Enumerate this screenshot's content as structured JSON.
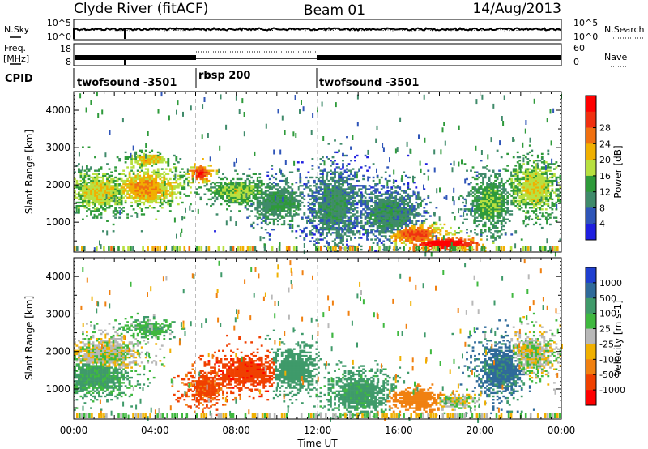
{
  "header": {
    "station": "Clyde River (fitACF)",
    "beam": "Beam 01",
    "date": "14/Aug/2013"
  },
  "strip": {
    "nsky_label": "N.Sky",
    "nsearch_label": "N.Search",
    "nsky_ticks": [
      "10^5",
      "10^0"
    ],
    "nsearch_ticks": [
      "10^5",
      "10^0"
    ],
    "freq_label_1": "Freq.",
    "freq_label_2": "[MHz]",
    "freq_ticks": [
      "18",
      "8"
    ],
    "nave_label": "Nave",
    "nave_ticks": [
      "60",
      "0"
    ],
    "cpid_label": "CPID",
    "cpid_segments": [
      {
        "label": "twofsound -3501",
        "start": 0,
        "end": 6
      },
      {
        "label": "rbsp 200",
        "start": 6,
        "end": 12
      },
      {
        "label": "twofsound -3501",
        "start": 12,
        "end": 24
      }
    ]
  },
  "chart_data": [
    {
      "type": "heatmap",
      "name": "power",
      "ylabel": "Slant Range [km]",
      "xlim": [
        0,
        24
      ],
      "ylim": [
        200,
        4500
      ],
      "yticks": [
        "1000",
        "2000",
        "3000",
        "4000"
      ],
      "colorbar_label": "Power [dB]",
      "colorbar_ticks": [
        "4",
        "8",
        "12",
        "16",
        "20",
        "24",
        "28"
      ],
      "colorbar_colors": [
        "#1f1fe0",
        "#2f55b8",
        "#3f8a6a",
        "#2e9a3a",
        "#b8e040",
        "#f0b000",
        "#f07010",
        "#f03010",
        "#ff0000"
      ],
      "blobs": [
        {
          "t": 1.2,
          "r": 1800,
          "sr": 500,
          "st": 1.4,
          "v": 14
        },
        {
          "t": 3.5,
          "r": 1900,
          "sr": 420,
          "st": 1.6,
          "v": 18
        },
        {
          "t": 3.6,
          "r": 2650,
          "sr": 160,
          "st": 0.9,
          "v": 16
        },
        {
          "t": 6.2,
          "r": 2300,
          "sr": 220,
          "st": 0.5,
          "v": 24
        },
        {
          "t": 8.0,
          "r": 1800,
          "sr": 320,
          "st": 1.4,
          "v": 12
        },
        {
          "t": 10.0,
          "r": 1500,
          "sr": 480,
          "st": 1.2,
          "v": 8
        },
        {
          "t": 12.8,
          "r": 1400,
          "sr": 900,
          "st": 1.2,
          "v": 6
        },
        {
          "t": 15.5,
          "r": 1200,
          "sr": 650,
          "st": 1.4,
          "v": 6
        },
        {
          "t": 16.8,
          "r": 650,
          "sr": 260,
          "st": 1.4,
          "v": 22
        },
        {
          "t": 18.2,
          "r": 400,
          "sr": 160,
          "st": 1.5,
          "v": 30
        },
        {
          "t": 20.4,
          "r": 1500,
          "sr": 650,
          "st": 0.9,
          "v": 10
        },
        {
          "t": 22.6,
          "r": 1900,
          "sr": 650,
          "st": 1.1,
          "v": 14
        }
      ]
    },
    {
      "type": "heatmap",
      "name": "velocity",
      "xlabel": "Time UT",
      "ylabel": "Slant Range [km]",
      "xlim": [
        0,
        24
      ],
      "ylim": [
        200,
        4500
      ],
      "xticks": [
        "00:00",
        "04:00",
        "08:00",
        "12:00",
        "16:00",
        "20:00",
        "00:00"
      ],
      "yticks": [
        "1000",
        "2000",
        "3000",
        "4000"
      ],
      "colorbar_label": "Velocity [m s-1]",
      "colorbar_ticks": [
        "1000",
        "500",
        "100",
        "25",
        "-25",
        "-100",
        "-500",
        "-1000"
      ],
      "colorbar_colors": [
        "#1f3fd0",
        "#2f6a9a",
        "#3f9a6a",
        "#3fb83f",
        "#b8b8b8",
        "#f0b000",
        "#f08010",
        "#f04000",
        "#ff0000"
      ],
      "blobs": [
        {
          "t": 1.5,
          "r": 1900,
          "sr": 420,
          "st": 1.6,
          "v": 0
        },
        {
          "t": 1.0,
          "r": 1300,
          "sr": 450,
          "st": 1.5,
          "v": 120
        },
        {
          "t": 3.6,
          "r": 2600,
          "sr": 200,
          "st": 1.0,
          "v": 80
        },
        {
          "t": 6.5,
          "r": 1000,
          "sr": 400,
          "st": 0.9,
          "v": -600
        },
        {
          "t": 8.5,
          "r": 1450,
          "sr": 400,
          "st": 1.5,
          "v": -800
        },
        {
          "t": 10.8,
          "r": 1500,
          "sr": 500,
          "st": 1.0,
          "v": 200
        },
        {
          "t": 14.0,
          "r": 900,
          "sr": 500,
          "st": 1.3,
          "v": 150
        },
        {
          "t": 16.8,
          "r": 700,
          "sr": 250,
          "st": 1.2,
          "v": -300
        },
        {
          "t": 18.7,
          "r": 650,
          "sr": 180,
          "st": 0.9,
          "v": 0
        },
        {
          "t": 21.0,
          "r": 1500,
          "sr": 650,
          "st": 1.0,
          "v": 600
        },
        {
          "t": 22.5,
          "r": 1900,
          "sr": 500,
          "st": 1.0,
          "v": 0
        }
      ]
    }
  ]
}
